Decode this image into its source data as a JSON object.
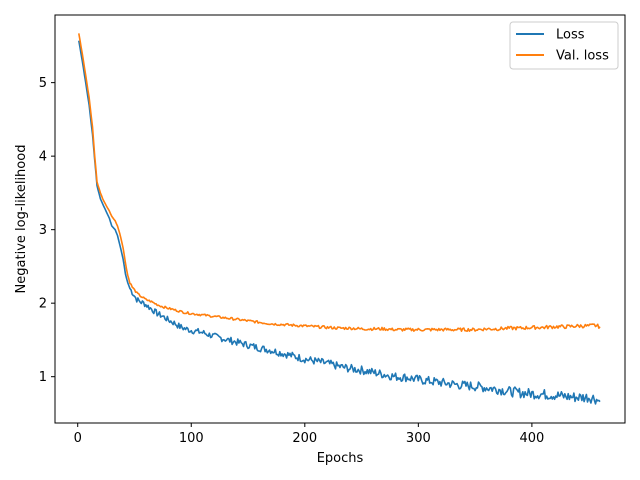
{
  "chart_data": {
    "type": "line",
    "title": "",
    "xlabel": "Epochs",
    "ylabel": "Negative log-likelihood",
    "xlim": [
      -20,
      482
    ],
    "ylim": [
      0.37,
      5.92
    ],
    "xticks": [
      0,
      100,
      200,
      300,
      400
    ],
    "yticks": [
      1,
      2,
      3,
      4,
      5
    ],
    "grid": false,
    "legend_position": "top-right",
    "series": [
      {
        "name": "Loss",
        "color": "#1f77b4",
        "x": [
          1,
          5,
          10,
          13,
          15,
          17,
          20,
          22,
          25,
          28,
          30,
          33,
          35,
          37,
          40,
          42,
          44,
          46,
          48,
          50,
          52,
          55,
          58,
          60,
          65,
          70,
          75,
          80,
          85,
          90,
          95,
          100,
          110,
          120,
          130,
          140,
          150,
          160,
          170,
          180,
          190,
          200,
          210,
          220,
          230,
          240,
          250,
          260,
          270,
          280,
          290,
          300,
          310,
          320,
          330,
          340,
          350,
          360,
          370,
          380,
          390,
          400,
          410,
          420,
          430,
          440,
          450,
          455,
          460
        ],
        "y": [
          5.57,
          5.2,
          4.7,
          4.3,
          3.95,
          3.6,
          3.42,
          3.35,
          3.25,
          3.15,
          3.05,
          3.0,
          2.92,
          2.8,
          2.6,
          2.4,
          2.28,
          2.2,
          2.15,
          2.1,
          2.05,
          2.02,
          2.0,
          1.98,
          1.92,
          1.86,
          1.82,
          1.77,
          1.73,
          1.68,
          1.65,
          1.63,
          1.6,
          1.55,
          1.51,
          1.47,
          1.43,
          1.39,
          1.36,
          1.32,
          1.28,
          1.24,
          1.21,
          1.18,
          1.14,
          1.11,
          1.09,
          1.06,
          1.03,
          1.0,
          0.99,
          0.96,
          0.94,
          0.92,
          0.9,
          0.88,
          0.87,
          0.85,
          0.83,
          0.8,
          0.78,
          0.77,
          0.76,
          0.75,
          0.73,
          0.72,
          0.72,
          0.71,
          0.66
        ]
      },
      {
        "name": "Val. loss",
        "color": "#ff7f0e",
        "x": [
          1,
          5,
          10,
          13,
          15,
          17,
          20,
          22,
          25,
          28,
          30,
          33,
          35,
          37,
          40,
          42,
          44,
          46,
          48,
          50,
          52,
          55,
          58,
          60,
          65,
          70,
          75,
          80,
          85,
          90,
          95,
          100,
          110,
          120,
          130,
          140,
          150,
          160,
          170,
          180,
          190,
          200,
          210,
          220,
          230,
          240,
          250,
          260,
          270,
          280,
          290,
          300,
          310,
          320,
          330,
          340,
          350,
          360,
          370,
          380,
          390,
          400,
          410,
          420,
          430,
          440,
          450,
          455,
          460
        ],
        "y": [
          5.67,
          5.3,
          4.8,
          4.4,
          4.0,
          3.65,
          3.5,
          3.42,
          3.33,
          3.25,
          3.18,
          3.12,
          3.05,
          2.95,
          2.75,
          2.55,
          2.38,
          2.28,
          2.22,
          2.18,
          2.14,
          2.1,
          2.07,
          2.05,
          2.02,
          1.98,
          1.95,
          1.93,
          1.91,
          1.89,
          1.87,
          1.86,
          1.84,
          1.82,
          1.8,
          1.78,
          1.76,
          1.74,
          1.72,
          1.71,
          1.7,
          1.69,
          1.68,
          1.67,
          1.66,
          1.66,
          1.65,
          1.65,
          1.65,
          1.64,
          1.64,
          1.64,
          1.64,
          1.64,
          1.64,
          1.64,
          1.64,
          1.65,
          1.65,
          1.66,
          1.66,
          1.67,
          1.67,
          1.68,
          1.68,
          1.69,
          1.69,
          1.7,
          1.68
        ]
      }
    ]
  }
}
